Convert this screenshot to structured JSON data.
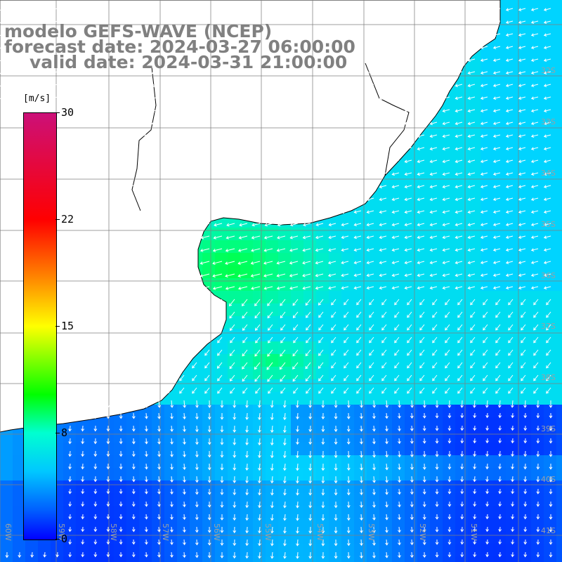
{
  "title": {
    "line1": "modelo GEFS-WAVE (NCEP)",
    "line2": "forecast date: 2024-03-27 06:00:00",
    "line3": "valid date: 2024-03-31 21:00:00"
  },
  "colorbar": {
    "unit": "[m/s]",
    "ticks": [
      "30",
      "22",
      "15",
      "8",
      "0"
    ]
  },
  "lat_labels": [
    "32S",
    "33S",
    "34S",
    "35S",
    "36S",
    "37S",
    "38S",
    "39S",
    "40S",
    "41S"
  ],
  "lon_labels": [
    "60W",
    "59W",
    "58W",
    "57W",
    "56W",
    "55W",
    "54W",
    "53W",
    "52W",
    "51W"
  ],
  "colors": {
    "land": "#ffffff",
    "grid": "#808080",
    "coast": "#000000",
    "arrow": "#ffffff",
    "calm": "#0000ff",
    "moderate": "#00c8ff",
    "strong": "#00ff60"
  }
}
